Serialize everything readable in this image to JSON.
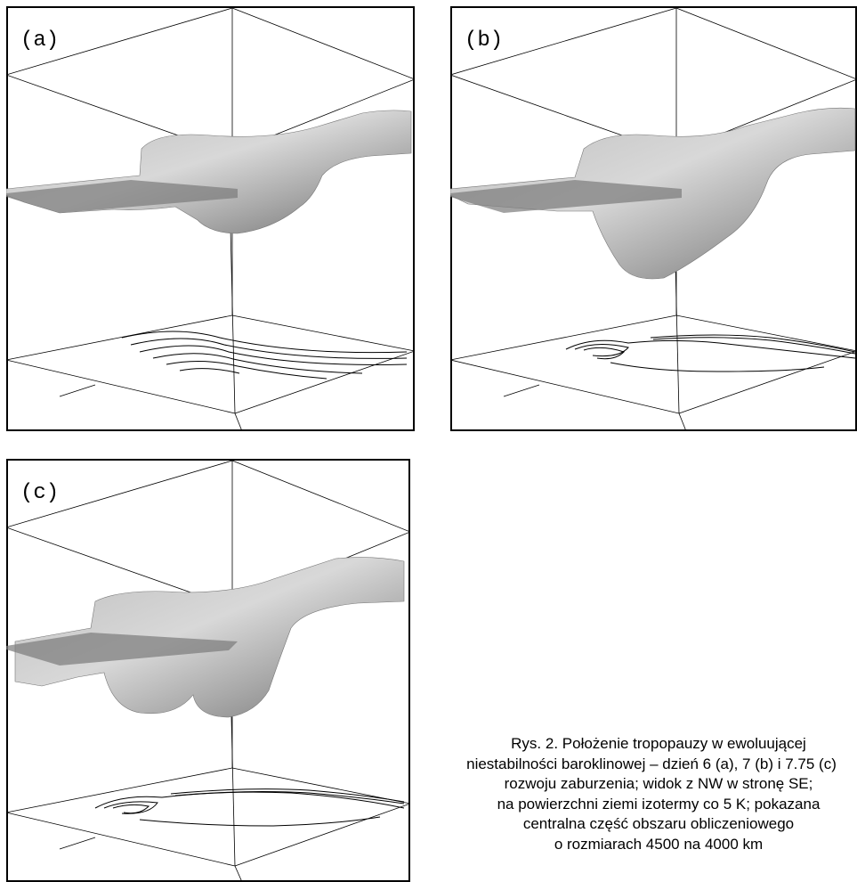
{
  "figure": {
    "panels": [
      {
        "label": "(a)"
      },
      {
        "label": "(b)"
      },
      {
        "label": "(c)"
      }
    ],
    "caption": [
      "Rys. 2.  Położenie tropopauzy w ewoluującej",
      "niestabilności baroklinowej – dzień 6 (a), 7 (b) i 7.75 (c)",
      "rozwoju zaburzenia; widok z NW w stronę SE;",
      "na powierzchni ziemi izotermy co 5 K; pokazana",
      "centralna część obszaru obliczeniowego",
      "o rozmiarach 4500 na 4000 km"
    ]
  }
}
